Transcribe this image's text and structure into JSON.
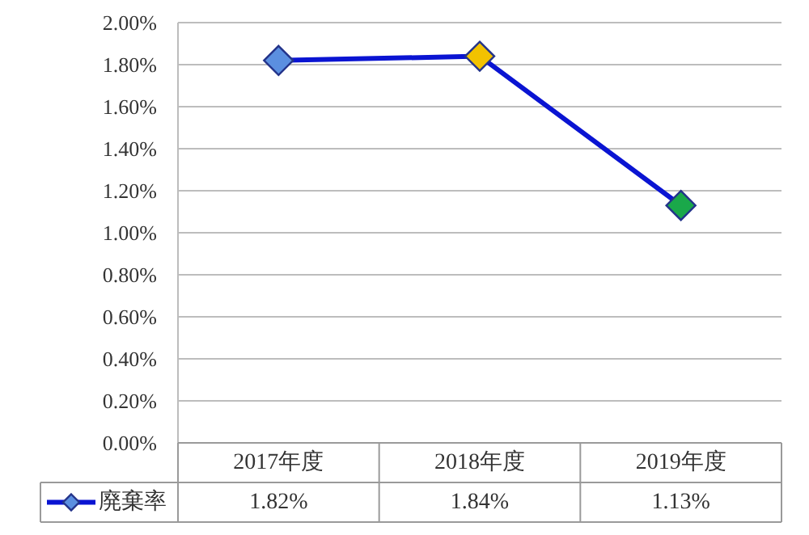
{
  "chart_data": {
    "type": "line",
    "categories": [
      "2017年度",
      "2018年度",
      "2019年度"
    ],
    "series": [
      {
        "name": "廃棄率",
        "color": "#0a14d2",
        "colors": [
          "#5b8fe0",
          "#f2c200",
          "#1aa84a"
        ],
        "values": [
          1.82,
          1.84,
          1.13
        ],
        "value_labels": [
          "1.82%",
          "1.84%",
          "1.13%"
        ]
      }
    ],
    "ylim": [
      0,
      2
    ],
    "yticks": [
      {
        "value": 0,
        "label": "0.00%"
      },
      {
        "value": 0.2,
        "label": "0.20%"
      },
      {
        "value": 0.4,
        "label": "0.40%"
      },
      {
        "value": 0.6,
        "label": "0.60%"
      },
      {
        "value": 0.8,
        "label": "0.80%"
      },
      {
        "value": 1,
        "label": "1.00%"
      },
      {
        "value": 1.2,
        "label": "1.20%"
      },
      {
        "value": 1.4,
        "label": "1.40%"
      },
      {
        "value": 1.6,
        "label": "1.60%"
      },
      {
        "value": 1.8,
        "label": "1.80%"
      },
      {
        "value": 2,
        "label": "2.00%"
      }
    ],
    "grid": "y",
    "legend": "bottom",
    "marker": "diamond",
    "line_style": "solid"
  }
}
